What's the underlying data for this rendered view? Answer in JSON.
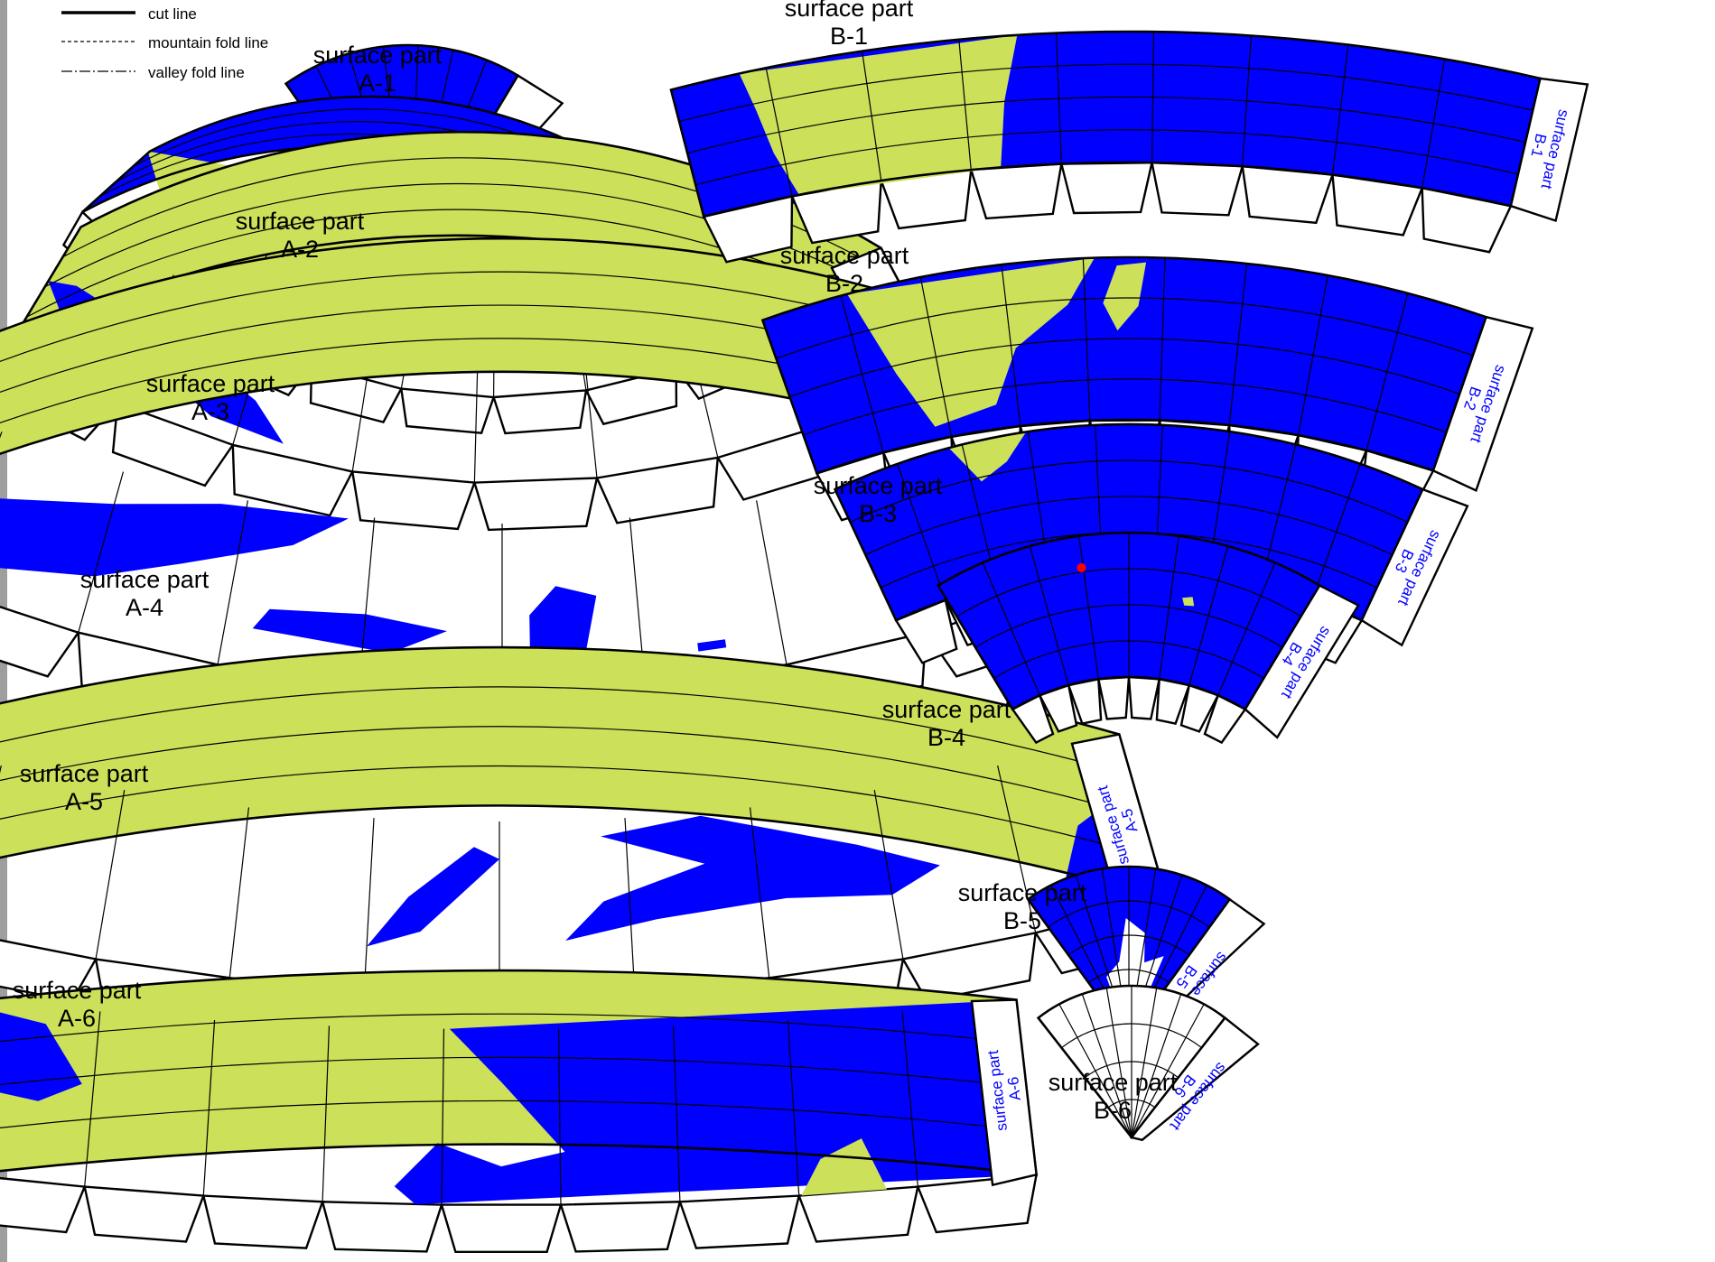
{
  "legend": {
    "cut_line": "cut line",
    "mountain_fold_line": "mountain fold line",
    "valley_fold_line": "valley fold line"
  },
  "colors": {
    "ocean": "#0000ff",
    "land": "#cce05a",
    "ice": "#ffffff",
    "tab": "#ffffff",
    "outline": "#000000",
    "label_blue": "#0000ff",
    "marker": "#ff0000"
  },
  "title_word": "surface part",
  "tab_word": "surface part",
  "parts": [
    {
      "code": "A-1"
    },
    {
      "code": "A-2"
    },
    {
      "code": "A-3"
    },
    {
      "code": "A-4"
    },
    {
      "code": "A-5"
    },
    {
      "code": "A-6"
    },
    {
      "code": "B-1"
    },
    {
      "code": "B-2"
    },
    {
      "code": "B-3"
    },
    {
      "code": "B-4"
    },
    {
      "code": "B-5"
    },
    {
      "code": "B-6"
    }
  ]
}
